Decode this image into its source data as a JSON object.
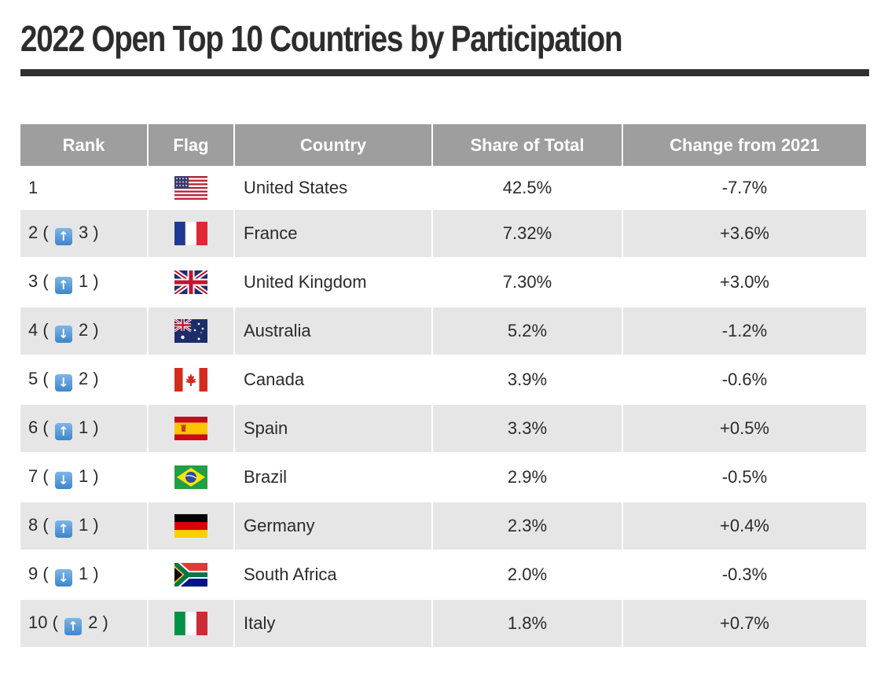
{
  "title": "2022 Open Top 10 Countries by Participation",
  "columns": [
    "Rank",
    "Flag",
    "Country",
    "Share of Total",
    "Change from 2021"
  ],
  "rows": [
    {
      "rank": "1",
      "direction": "",
      "movement": "",
      "flag_icon": "us-flag-icon",
      "country": "United States",
      "share": "42.5%",
      "change": "-7.7%"
    },
    {
      "rank": "2",
      "direction": "up",
      "movement": "3",
      "flag_icon": "france-flag-icon",
      "country": "France",
      "share": "7.32%",
      "change": "+3.6%"
    },
    {
      "rank": "3",
      "direction": "up",
      "movement": "1",
      "flag_icon": "uk-flag-icon",
      "country": "United Kingdom",
      "share": "7.30%",
      "change": "+3.0%"
    },
    {
      "rank": "4",
      "direction": "down",
      "movement": "2",
      "flag_icon": "australia-flag-icon",
      "country": "Australia",
      "share": "5.2%",
      "change": "-1.2%"
    },
    {
      "rank": "5",
      "direction": "down",
      "movement": "2",
      "flag_icon": "canada-flag-icon",
      "country": "Canada",
      "share": "3.9%",
      "change": "-0.6%"
    },
    {
      "rank": "6",
      "direction": "up",
      "movement": "1",
      "flag_icon": "spain-flag-icon",
      "country": "Spain",
      "share": "3.3%",
      "change": "+0.5%"
    },
    {
      "rank": "7",
      "direction": "down",
      "movement": "1",
      "flag_icon": "brazil-flag-icon",
      "country": "Brazil",
      "share": "2.9%",
      "change": "-0.5%"
    },
    {
      "rank": "8",
      "direction": "up",
      "movement": "1",
      "flag_icon": "germany-flag-icon",
      "country": "Germany",
      "share": "2.3%",
      "change": "+0.4%"
    },
    {
      "rank": "9",
      "direction": "down",
      "movement": "1",
      "flag_icon": "south-africa-flag-icon",
      "country": "South Africa",
      "share": "2.0%",
      "change": "-0.3%"
    },
    {
      "rank": "10",
      "direction": "up",
      "movement": "2",
      "flag_icon": "italy-flag-icon",
      "country": "Italy",
      "share": "1.8%",
      "change": "+0.7%"
    }
  ],
  "colors": {
    "header_bg": "#9e9e9e",
    "stripe_bg": "#e6e6e6",
    "title_rule": "#2f2f2f",
    "arrow_badge": "#4a90d9"
  }
}
